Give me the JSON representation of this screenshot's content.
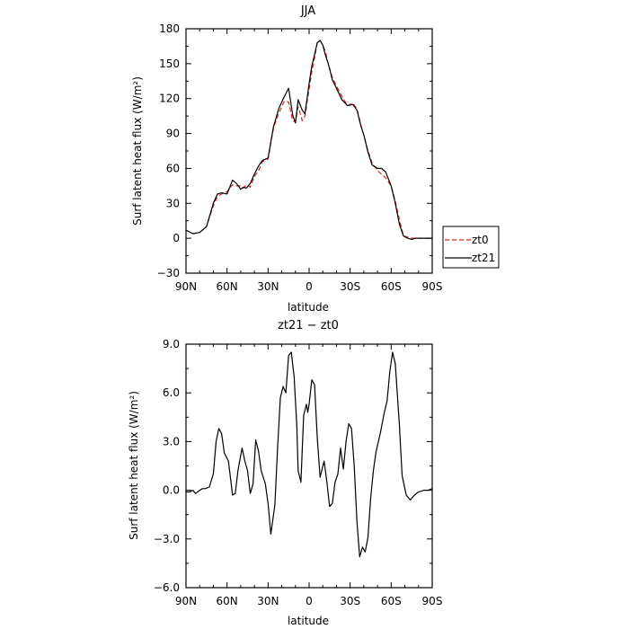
{
  "chart_data": [
    {
      "type": "line",
      "title": "JJA",
      "xlabel": "latitude",
      "ylabel": "Surf latent heat flux (W/m²)",
      "x_ticks": [
        90,
        60,
        30,
        0,
        -30,
        -60,
        -90
      ],
      "x_tick_labels": [
        "90N",
        "60N",
        "30N",
        "0",
        "30S",
        "60S",
        "90S"
      ],
      "xlim": [
        90,
        -90
      ],
      "y_ticks": [
        -30,
        0,
        30,
        60,
        90,
        120,
        150,
        180
      ],
      "y_tick_labels": [
        "−30",
        "0",
        "30",
        "60",
        "90",
        "120",
        "150",
        "180"
      ],
      "ylim": [
        -30,
        180
      ],
      "legend_position": "right",
      "x": [
        90,
        85,
        80,
        75,
        70,
        67,
        64,
        60,
        56,
        53,
        50,
        48,
        46,
        43,
        40,
        37,
        34,
        30,
        26,
        22,
        18,
        15,
        12,
        10,
        8,
        5,
        3,
        0,
        -2,
        -4,
        -6,
        -8,
        -10,
        -12,
        -14,
        -17,
        -20,
        -24,
        -28,
        -32,
        -35,
        -38,
        -40,
        -43,
        -46,
        -50,
        -53,
        -56,
        -60,
        -63,
        -66,
        -69,
        -72,
        -75,
        -78,
        -80,
        -85,
        -90
      ],
      "series": [
        {
          "name": "zt0",
          "color": "#e02020",
          "dash": true,
          "values": [
            7,
            4,
            5,
            10,
            28,
            36,
            38,
            40,
            46,
            45,
            45,
            43,
            46,
            44,
            53,
            58,
            66,
            68,
            95,
            108,
            118,
            117,
            101,
            100,
            113,
            101,
            105,
            128,
            143,
            155,
            168,
            170,
            166,
            160,
            150,
            138,
            131,
            122,
            114,
            116,
            111,
            97,
            88,
            75,
            65,
            58,
            55,
            52,
            45,
            32,
            16,
            2,
            1,
            0,
            0,
            0,
            0,
            0
          ]
        },
        {
          "name": "zt21",
          "color": "#000000",
          "dash": false,
          "values": [
            7,
            4,
            5,
            10,
            30,
            38,
            39,
            38,
            50,
            47,
            42,
            44,
            43,
            47,
            55,
            62,
            67,
            69,
            96,
            112,
            122,
            129,
            106,
            99,
            119,
            110,
            107,
            133,
            148,
            158,
            168,
            170,
            166,
            157,
            150,
            136,
            129,
            119,
            114,
            115,
            110,
            96,
            89,
            74,
            63,
            60,
            60,
            57,
            45,
            30,
            12,
            2,
            0,
            -1,
            0,
            0,
            0,
            0
          ]
        }
      ]
    },
    {
      "type": "line",
      "title": "zt21 − zt0",
      "xlabel": "latitude",
      "ylabel": "Surf latent heat flux (W/m²)",
      "x_ticks": [
        90,
        60,
        30,
        0,
        -30,
        -60,
        -90
      ],
      "x_tick_labels": [
        "90N",
        "60N",
        "30N",
        "0",
        "30S",
        "60S",
        "90S"
      ],
      "xlim": [
        90,
        -90
      ],
      "y_ticks": [
        -6.0,
        -3.0,
        0.0,
        3.0,
        6.0,
        9.0
      ],
      "y_tick_labels": [
        "−6.0",
        "−3.0",
        "0.0",
        "3.0",
        "6.0",
        "9.0"
      ],
      "ylim": [
        -6.0,
        9.0
      ],
      "x": [
        90,
        87,
        85,
        83,
        80,
        78,
        76,
        73,
        70,
        68,
        66,
        64,
        62,
        59,
        56,
        54,
        52,
        49,
        47,
        45,
        43,
        41,
        39,
        37,
        35,
        32,
        30,
        28,
        25,
        23,
        21,
        19,
        17,
        15,
        13,
        11,
        9,
        8,
        6,
        4,
        2,
        1,
        0,
        -2,
        -4,
        -6,
        -8,
        -11,
        -13,
        -15,
        -17,
        -19,
        -21,
        -23,
        -25,
        -27,
        -29,
        -31,
        -33,
        -35,
        -37,
        -39,
        -41,
        -43,
        -45,
        -47,
        -49,
        -52,
        -55,
        -57,
        -59,
        -61,
        -63,
        -66,
        -68,
        -71,
        -74,
        -77,
        -80,
        -84,
        -87,
        -90
      ],
      "series": [
        {
          "name": "zt21 − zt0",
          "color": "#000000",
          "values": [
            -0.1,
            -0.1,
            0.0,
            -0.2,
            0.0,
            0.1,
            0.1,
            0.2,
            1.0,
            3.0,
            3.8,
            3.5,
            2.3,
            1.8,
            -0.3,
            -0.2,
            1.2,
            2.6,
            1.8,
            1.2,
            -0.2,
            0.4,
            3.1,
            2.4,
            1.2,
            0.4,
            -0.8,
            -2.7,
            -0.9,
            2.7,
            5.7,
            6.4,
            6.0,
            8.3,
            8.5,
            7.0,
            4.0,
            1.2,
            0.5,
            4.6,
            5.3,
            4.8,
            5.3,
            6.8,
            6.5,
            3.2,
            0.8,
            1.8,
            0.5,
            -1.0,
            -0.8,
            0.5,
            1.0,
            2.6,
            1.3,
            3.0,
            4.1,
            3.8,
            1.5,
            -2.0,
            -4.1,
            -3.5,
            -3.8,
            -2.9,
            -0.5,
            1.2,
            2.4,
            3.5,
            4.8,
            5.5,
            7.3,
            8.5,
            7.8,
            4.0,
            0.9,
            -0.3,
            -0.6,
            -0.3,
            -0.1,
            0.0,
            0.0,
            0.1
          ]
        }
      ]
    }
  ]
}
